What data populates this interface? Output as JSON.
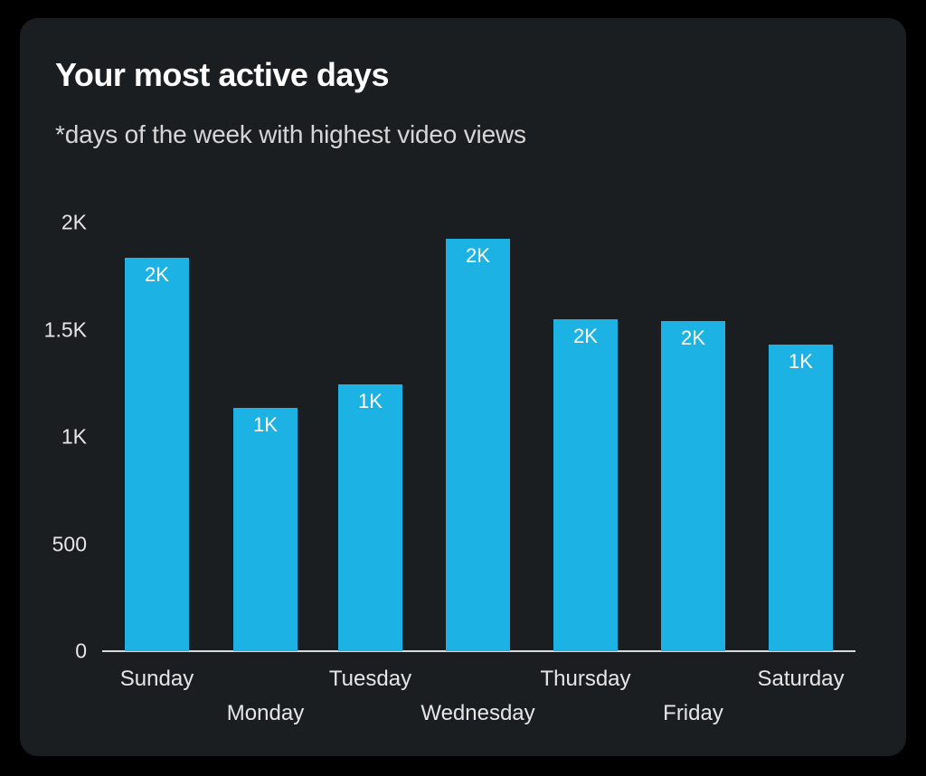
{
  "card": {
    "title": "Your most active days",
    "subtitle": "*days of the week with highest video views"
  },
  "colors": {
    "bar": "#1cb3e4",
    "card_bg": "#1b1e21",
    "page_bg": "#000000"
  },
  "y_axis": {
    "ticks": [
      "0",
      "500",
      "1K",
      "1.5K",
      "2K"
    ]
  },
  "bars": [
    {
      "day": "Sunday",
      "label": "2K"
    },
    {
      "day": "Monday",
      "label": "1K"
    },
    {
      "day": "Tuesday",
      "label": "1K"
    },
    {
      "day": "Wednesday",
      "label": "2K"
    },
    {
      "day": "Thursday",
      "label": "2K"
    },
    {
      "day": "Friday",
      "label": "2K"
    },
    {
      "day": "Saturday",
      "label": "1K"
    }
  ],
  "chart_data": {
    "type": "bar",
    "title": "Your most active days",
    "subtitle": "*days of the week with highest video views",
    "categories": [
      "Sunday",
      "Monday",
      "Tuesday",
      "Wednesday",
      "Thursday",
      "Friday",
      "Saturday"
    ],
    "values": [
      1835,
      1135,
      1245,
      1925,
      1550,
      1540,
      1430
    ],
    "data_labels": [
      "2K",
      "1K",
      "1K",
      "2K",
      "2K",
      "2K",
      "1K"
    ],
    "xlabel": "",
    "ylabel": "",
    "ylim": [
      0,
      2000
    ],
    "yticks": [
      0,
      500,
      1000,
      1500,
      2000
    ],
    "ytick_labels": [
      "0",
      "500",
      "1K",
      "1.5K",
      "2K"
    ],
    "grid": false,
    "legend": null
  }
}
